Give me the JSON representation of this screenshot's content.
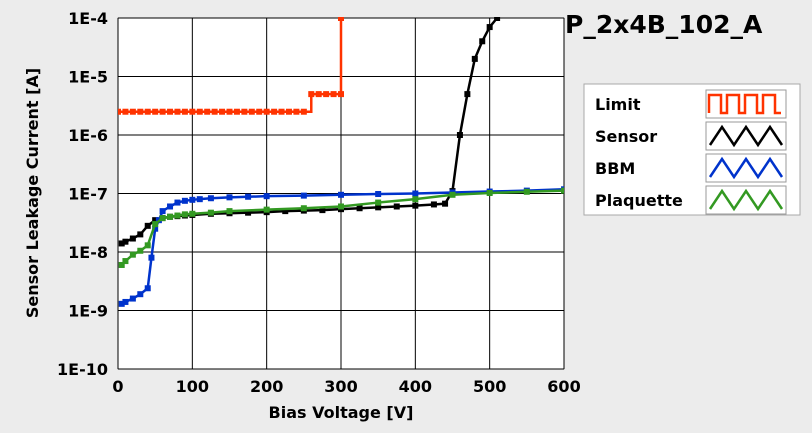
{
  "chart_data": {
    "type": "line",
    "title": "P_2x4B_102_A",
    "xlabel": "Bias Voltage [V]",
    "ylabel": "Sensor Leakage Current [A]",
    "xlim": [
      0,
      600
    ],
    "ylim": [
      1e-10,
      0.0001
    ],
    "yscale": "log",
    "grid": true,
    "legend_position": "right",
    "x_ticks": [
      0,
      100,
      200,
      300,
      400,
      500,
      600
    ],
    "x_tick_labels": [
      "0",
      "100",
      "200",
      "300",
      "400",
      "500",
      "600"
    ],
    "y_ticks": [
      1e-10,
      1e-09,
      1e-08,
      1e-07,
      1e-06,
      1e-05,
      0.0001
    ],
    "y_tick_labels": [
      "1E-10",
      "1E-9",
      "1E-8",
      "1E-7",
      "1E-6",
      "1E-5",
      "1E-4"
    ],
    "series": [
      {
        "name": "Limit",
        "color": "#ff3300",
        "step": true,
        "x": [
          0,
          10,
          20,
          30,
          40,
          50,
          60,
          70,
          80,
          90,
          100,
          110,
          120,
          130,
          140,
          150,
          160,
          170,
          180,
          190,
          200,
          210,
          220,
          230,
          240,
          250,
          260,
          270,
          280,
          290,
          300,
          300
        ],
        "y": [
          2.5e-06,
          2.5e-06,
          2.5e-06,
          2.5e-06,
          2.5e-06,
          2.5e-06,
          2.5e-06,
          2.5e-06,
          2.5e-06,
          2.5e-06,
          2.5e-06,
          2.5e-06,
          2.5e-06,
          2.5e-06,
          2.5e-06,
          2.5e-06,
          2.5e-06,
          2.5e-06,
          2.5e-06,
          2.5e-06,
          2.5e-06,
          2.5e-06,
          2.5e-06,
          2.5e-06,
          2.5e-06,
          2.5e-06,
          5e-06,
          5e-06,
          5e-06,
          5e-06,
          5e-06,
          0.0001
        ]
      },
      {
        "name": "Sensor",
        "color": "#000000",
        "step": false,
        "x": [
          5,
          10,
          20,
          30,
          40,
          50,
          60,
          70,
          80,
          90,
          100,
          125,
          150,
          175,
          200,
          225,
          250,
          275,
          300,
          325,
          350,
          375,
          400,
          425,
          440,
          450,
          460,
          470,
          480,
          490,
          500,
          510
        ],
        "y": [
          1.4e-08,
          1.5e-08,
          1.7e-08,
          2e-08,
          2.8e-08,
          3.5e-08,
          3.8e-08,
          4e-08,
          4.1e-08,
          4.2e-08,
          4.3e-08,
          4.5e-08,
          4.6e-08,
          4.7e-08,
          4.8e-08,
          5e-08,
          5.1e-08,
          5.2e-08,
          5.4e-08,
          5.6e-08,
          5.8e-08,
          6e-08,
          6.2e-08,
          6.5e-08,
          6.7e-08,
          1.1e-07,
          1e-06,
          5e-06,
          2e-05,
          4e-05,
          7e-05,
          0.0001
        ]
      },
      {
        "name": "BBM",
        "color": "#0033cc",
        "step": false,
        "x": [
          5,
          10,
          20,
          30,
          40,
          45,
          50,
          55,
          60,
          70,
          80,
          90,
          100,
          110,
          125,
          150,
          175,
          200,
          250,
          300,
          350,
          400,
          450,
          500,
          550,
          600
        ],
        "y": [
          1.3e-09,
          1.4e-09,
          1.6e-09,
          1.9e-09,
          2.4e-09,
          8e-09,
          2.5e-08,
          3.5e-08,
          5e-08,
          6e-08,
          7e-08,
          7.5e-08,
          7.8e-08,
          8e-08,
          8.3e-08,
          8.6e-08,
          8.8e-08,
          9e-08,
          9.2e-08,
          9.5e-08,
          9.8e-08,
          1e-07,
          1.04e-07,
          1.08e-07,
          1.12e-07,
          1.18e-07
        ]
      },
      {
        "name": "Plaquette",
        "color": "#339922",
        "step": false,
        "x": [
          5,
          10,
          20,
          30,
          40,
          50,
          60,
          70,
          80,
          90,
          100,
          125,
          150,
          200,
          250,
          300,
          350,
          400,
          450,
          500,
          550,
          600
        ],
        "y": [
          6e-09,
          7e-09,
          9e-09,
          1.05e-08,
          1.3e-08,
          3e-08,
          3.8e-08,
          4e-08,
          4.2e-08,
          4.4e-08,
          4.5e-08,
          4.7e-08,
          5e-08,
          5.3e-08,
          5.6e-08,
          6e-08,
          7e-08,
          8e-08,
          9.5e-08,
          1.02e-07,
          1.07e-07,
          1.12e-07
        ]
      }
    ]
  }
}
